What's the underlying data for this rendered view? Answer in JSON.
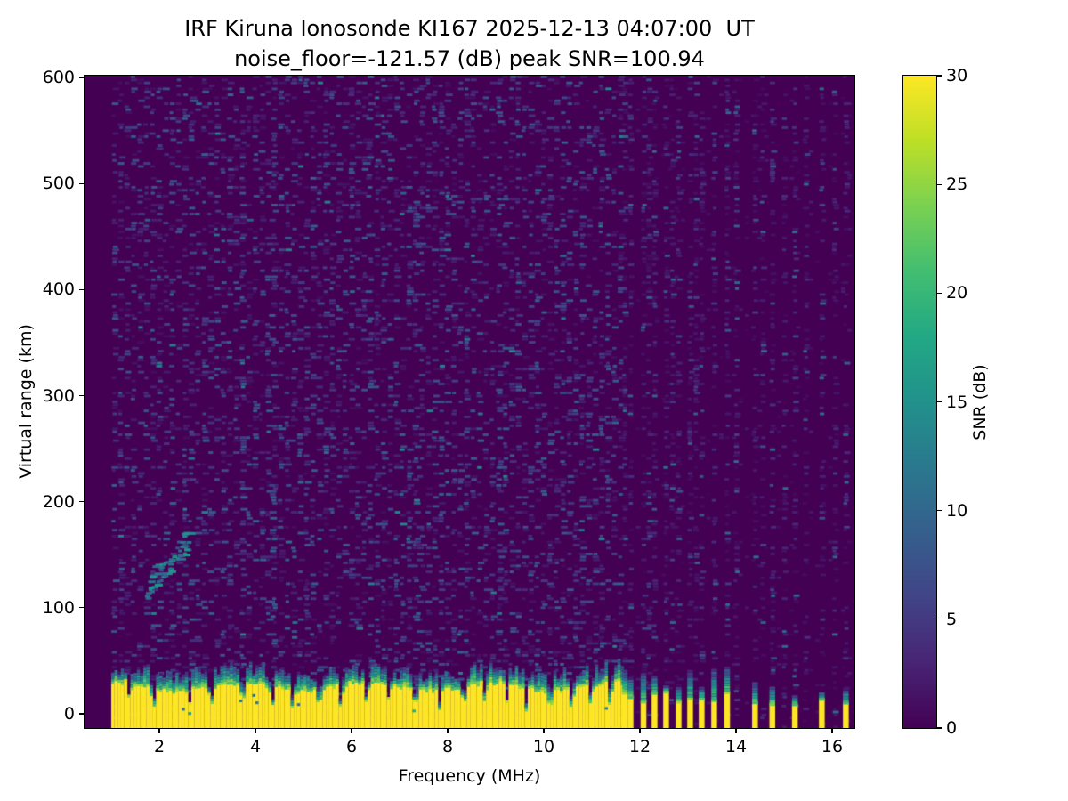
{
  "chart_data": {
    "type": "heatmap",
    "title": "IRF Kiruna Ionosonde KI167 2025-12-13 04:07:00  UT",
    "subtitle": "noise_floor=-121.57 (dB) peak SNR=100.94",
    "station": "IRF Kiruna",
    "instrument": "Ionosonde KI167",
    "timestamp_ut": "2025-12-13 04:07:00",
    "noise_floor_db": -121.57,
    "peak_snr_db": 100.94,
    "xlabel": "Frequency (MHz)",
    "ylabel": "Virtual range (km)",
    "colorbar_label": "SNR (dB)",
    "xlim_mhz": [
      0.44,
      16.46
    ],
    "ylim_km": [
      -13.5,
      601.5
    ],
    "clim_db": [
      0,
      30
    ],
    "xticks": [
      2,
      4,
      6,
      8,
      10,
      12,
      14,
      16
    ],
    "yticks": [
      0,
      100,
      200,
      300,
      400,
      500,
      600
    ],
    "colorbar_ticks": [
      0,
      5,
      10,
      15,
      20,
      25,
      30
    ],
    "grid": false,
    "colormap": "viridis",
    "colormap_stops": [
      [
        0.0,
        "#440154"
      ],
      [
        0.1,
        "#482475"
      ],
      [
        0.2,
        "#414487"
      ],
      [
        0.3,
        "#355f8d"
      ],
      [
        0.4,
        "#2a788e"
      ],
      [
        0.5,
        "#21918c"
      ],
      [
        0.6,
        "#22a884"
      ],
      [
        0.7,
        "#42be71"
      ],
      [
        0.8,
        "#7ad151"
      ],
      [
        0.9,
        "#bddf26"
      ],
      [
        1.0,
        "#fde725"
      ]
    ],
    "features": {
      "sweep_start_mhz": 1.0,
      "background_snr_db": 0,
      "noise_speckle_snr_db": [
        1,
        9
      ],
      "ground_clutter": {
        "freq_range_mhz": [
          1.0,
          11.65
        ],
        "solid_band_top_km": [
          22,
          34
        ],
        "transition_top_km": [
          36,
          52
        ],
        "snr_db": 30
      },
      "clutter_notch_freqs_mhz": [
        1.35,
        1.85,
        2.6,
        3.05,
        3.7,
        4.32,
        4.75,
        5.3,
        5.75,
        6.28,
        6.75,
        7.3,
        7.8,
        8.3,
        8.75,
        9.2,
        9.6,
        10.1,
        10.55,
        10.95,
        11.35
      ],
      "weak_interference_freqs_mhz": [
        3.7,
        4.32,
        6.33,
        7.35,
        9.05
      ],
      "interference_stripe_freqs_mhz": [
        11.68,
        11.8,
        12.07,
        12.3,
        12.54,
        12.8,
        13.04,
        13.28,
        13.54,
        13.81,
        14.39,
        14.75,
        15.22,
        15.78,
        16.28
      ],
      "interference_column_extra_freqs_mhz": [
        12.18,
        12.67,
        13.16,
        14.0,
        14.55,
        15.0,
        15.45,
        16.05
      ],
      "echo_trace": {
        "freq_range_mhz": [
          1.7,
          2.6
        ],
        "range_km": [
          120,
          175
        ],
        "snr_db": [
          8,
          16
        ]
      }
    }
  }
}
